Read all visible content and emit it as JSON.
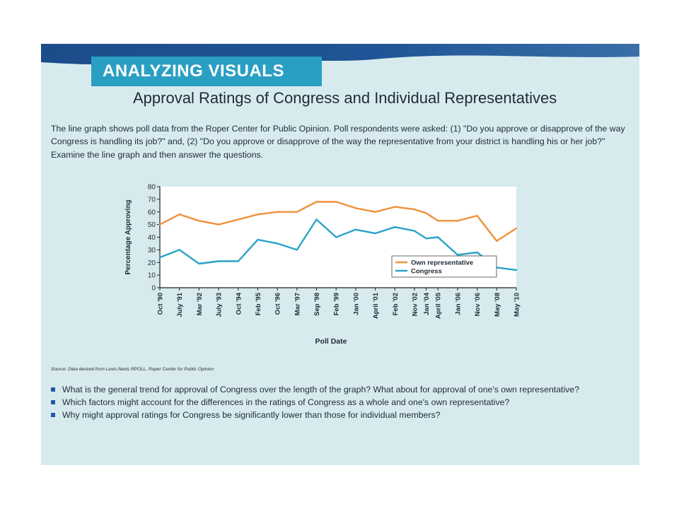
{
  "header": {
    "badge": "ANALYZING VISUALS",
    "title": "Approval Ratings of Congress and Individual Representatives"
  },
  "intro": "The line graph shows poll data from the Roper Center for Public Opinion. Poll respondents were asked: (1) \"Do you approve or disapprove of the way Congress is handling its job?\" and, (2) \"Do you approve or disapprove of the way the representative from your district is handling his or her job?\" Examine the line graph and then answer the questions.",
  "source": "Source: Data derived from Lexis-Nexis RPOLL, Roper Center for Public Opinion",
  "questions": [
    "What is the general trend for approval of Congress over the length of the graph? What about for approval of one's own representative?",
    "Which factors might account for the differences in the ratings of Congress as a whole and one's own representative?",
    "Why might approval ratings for Congress be significantly lower than those for individual members?"
  ],
  "colors": {
    "panel_bg": "#d7ebef",
    "own_representative": "#f0913a",
    "congress": "#29a3c9",
    "badge_bg": "#2a9fc4",
    "bar": "#1e4e8c"
  },
  "chart_data": {
    "type": "line",
    "xlabel": "Poll Date",
    "ylabel": "Percentage Approving",
    "ylim": [
      0,
      80
    ],
    "yticks": [
      0,
      10,
      20,
      30,
      40,
      50,
      60,
      70,
      80
    ],
    "grid": false,
    "legend": "lower-center",
    "categories": [
      "Oct '90",
      "July '91",
      "Mar '92",
      "July '93",
      "Oct '94",
      "Feb '95",
      "Oct '96",
      "Mar '97",
      "Sep '98",
      "Feb '99",
      "Jan '00",
      "April '01",
      "Feb '02",
      "Nov '02",
      "Jan '04",
      "April '05",
      "Jan '06",
      "Nov '06",
      "May '08",
      "May '10"
    ],
    "x_positions": [
      0,
      1,
      2,
      3,
      4,
      5,
      6,
      7,
      8,
      9,
      10,
      11,
      12,
      13,
      13.6,
      14.2,
      15.2,
      16.2,
      17.2,
      18.2
    ],
    "series": [
      {
        "name": "Own representative",
        "color": "#f0913a",
        "values": [
          50,
          58,
          53,
          50,
          54,
          58,
          60,
          60,
          68,
          68,
          63,
          60,
          64,
          62,
          59,
          53,
          53,
          57,
          37,
          47
        ]
      },
      {
        "name": "Congress",
        "color": "#29a3c9",
        "values": [
          24,
          30,
          19,
          21,
          21,
          38,
          35,
          30,
          54,
          40,
          46,
          43,
          48,
          45,
          39,
          40,
          26,
          28,
          16,
          14
        ]
      }
    ]
  }
}
